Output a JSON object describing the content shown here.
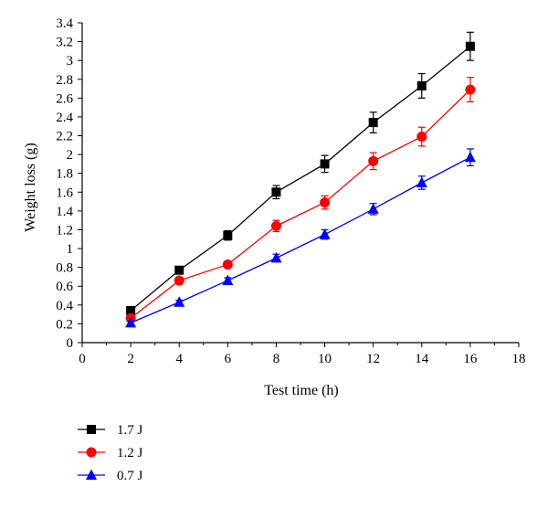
{
  "chart_data": {
    "type": "line",
    "title": "",
    "xlabel": "Test time (h)",
    "ylabel": "Weight loss (g)",
    "xlim": [
      0,
      18
    ],
    "ylim": [
      0,
      3.4
    ],
    "xticks": [
      "0",
      "2",
      "4",
      "6",
      "8",
      "10",
      "12",
      "14",
      "16",
      "18"
    ],
    "yticks": [
      "0",
      "0.2",
      "0.4",
      "0.6",
      "0.8",
      "1",
      "1.2",
      "1.4",
      "1.6",
      "1.8",
      "2",
      "2.2",
      "2.4",
      "2.6",
      "2.8",
      "3",
      "3.2",
      "3.4"
    ],
    "grid": false,
    "legend_position": "bottom-left",
    "x": [
      2,
      4,
      6,
      8,
      10,
      12,
      14,
      16
    ],
    "series": [
      {
        "name": "1.7 J",
        "color": "#000000",
        "marker": "square",
        "values": [
          0.34,
          0.77,
          1.14,
          1.6,
          1.9,
          2.34,
          2.73,
          3.15
        ],
        "errors": [
          0.03,
          0.03,
          0.05,
          0.07,
          0.09,
          0.11,
          0.13,
          0.15
        ]
      },
      {
        "name": "1.2 J",
        "color": "#ff0000",
        "marker": "circle",
        "values": [
          0.26,
          0.66,
          0.83,
          1.24,
          1.49,
          1.93,
          2.19,
          2.69
        ],
        "errors": [
          0.02,
          0.03,
          0.03,
          0.06,
          0.07,
          0.09,
          0.1,
          0.13
        ]
      },
      {
        "name": "0.7 J",
        "color": "#0000ff",
        "marker": "triangle",
        "values": [
          0.21,
          0.43,
          0.66,
          0.9,
          1.15,
          1.42,
          1.7,
          1.97
        ],
        "errors": [
          0.02,
          0.02,
          0.03,
          0.04,
          0.05,
          0.06,
          0.07,
          0.09
        ]
      }
    ]
  }
}
